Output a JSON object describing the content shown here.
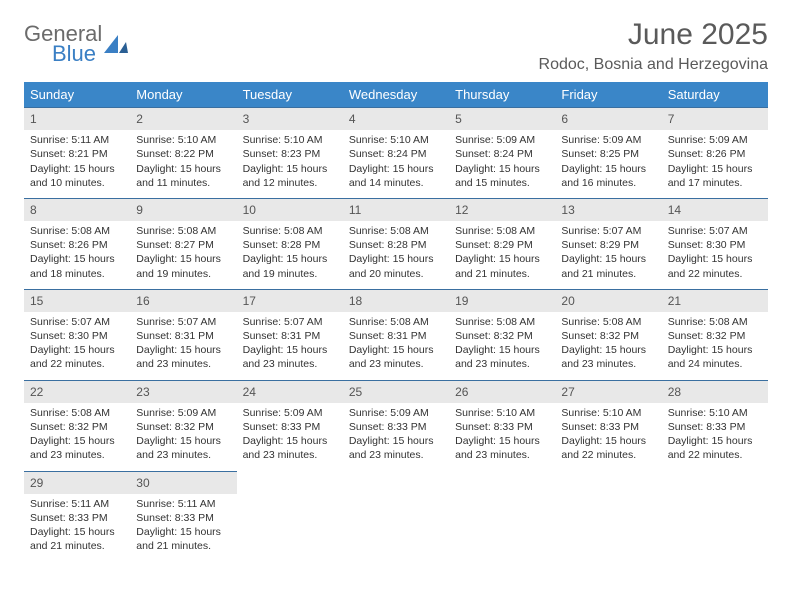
{
  "logo": {
    "word1": "General",
    "word2": "Blue"
  },
  "title": "June 2025",
  "location": "Rodoc, Bosnia and Herzegovina",
  "colors": {
    "header_bg": "#3a86c8",
    "header_text": "#ffffff",
    "daynum_bg": "#e8e8e8",
    "daynum_border": "#3a6fa0",
    "body_text": "#333333",
    "title_text": "#5a5a5a",
    "logo_gray": "#6b6b6b",
    "logo_blue": "#3a7fc4",
    "page_bg": "#ffffff"
  },
  "typography": {
    "title_fontsize": 30,
    "location_fontsize": 16,
    "dayheader_fontsize": 13,
    "cell_fontsize": 10.5
  },
  "layout": {
    "columns": 7,
    "first_weekday": "Sunday"
  },
  "weekdays": [
    "Sunday",
    "Monday",
    "Tuesday",
    "Wednesday",
    "Thursday",
    "Friday",
    "Saturday"
  ],
  "days": [
    {
      "n": 1,
      "sunrise": "5:11 AM",
      "sunset": "8:21 PM",
      "daylight": "15 hours and 10 minutes."
    },
    {
      "n": 2,
      "sunrise": "5:10 AM",
      "sunset": "8:22 PM",
      "daylight": "15 hours and 11 minutes."
    },
    {
      "n": 3,
      "sunrise": "5:10 AM",
      "sunset": "8:23 PM",
      "daylight": "15 hours and 12 minutes."
    },
    {
      "n": 4,
      "sunrise": "5:10 AM",
      "sunset": "8:24 PM",
      "daylight": "15 hours and 14 minutes."
    },
    {
      "n": 5,
      "sunrise": "5:09 AM",
      "sunset": "8:24 PM",
      "daylight": "15 hours and 15 minutes."
    },
    {
      "n": 6,
      "sunrise": "5:09 AM",
      "sunset": "8:25 PM",
      "daylight": "15 hours and 16 minutes."
    },
    {
      "n": 7,
      "sunrise": "5:09 AM",
      "sunset": "8:26 PM",
      "daylight": "15 hours and 17 minutes."
    },
    {
      "n": 8,
      "sunrise": "5:08 AM",
      "sunset": "8:26 PM",
      "daylight": "15 hours and 18 minutes."
    },
    {
      "n": 9,
      "sunrise": "5:08 AM",
      "sunset": "8:27 PM",
      "daylight": "15 hours and 19 minutes."
    },
    {
      "n": 10,
      "sunrise": "5:08 AM",
      "sunset": "8:28 PM",
      "daylight": "15 hours and 19 minutes."
    },
    {
      "n": 11,
      "sunrise": "5:08 AM",
      "sunset": "8:28 PM",
      "daylight": "15 hours and 20 minutes."
    },
    {
      "n": 12,
      "sunrise": "5:08 AM",
      "sunset": "8:29 PM",
      "daylight": "15 hours and 21 minutes."
    },
    {
      "n": 13,
      "sunrise": "5:07 AM",
      "sunset": "8:29 PM",
      "daylight": "15 hours and 21 minutes."
    },
    {
      "n": 14,
      "sunrise": "5:07 AM",
      "sunset": "8:30 PM",
      "daylight": "15 hours and 22 minutes."
    },
    {
      "n": 15,
      "sunrise": "5:07 AM",
      "sunset": "8:30 PM",
      "daylight": "15 hours and 22 minutes."
    },
    {
      "n": 16,
      "sunrise": "5:07 AM",
      "sunset": "8:31 PM",
      "daylight": "15 hours and 23 minutes."
    },
    {
      "n": 17,
      "sunrise": "5:07 AM",
      "sunset": "8:31 PM",
      "daylight": "15 hours and 23 minutes."
    },
    {
      "n": 18,
      "sunrise": "5:08 AM",
      "sunset": "8:31 PM",
      "daylight": "15 hours and 23 minutes."
    },
    {
      "n": 19,
      "sunrise": "5:08 AM",
      "sunset": "8:32 PM",
      "daylight": "15 hours and 23 minutes."
    },
    {
      "n": 20,
      "sunrise": "5:08 AM",
      "sunset": "8:32 PM",
      "daylight": "15 hours and 23 minutes."
    },
    {
      "n": 21,
      "sunrise": "5:08 AM",
      "sunset": "8:32 PM",
      "daylight": "15 hours and 24 minutes."
    },
    {
      "n": 22,
      "sunrise": "5:08 AM",
      "sunset": "8:32 PM",
      "daylight": "15 hours and 23 minutes."
    },
    {
      "n": 23,
      "sunrise": "5:09 AM",
      "sunset": "8:32 PM",
      "daylight": "15 hours and 23 minutes."
    },
    {
      "n": 24,
      "sunrise": "5:09 AM",
      "sunset": "8:33 PM",
      "daylight": "15 hours and 23 minutes."
    },
    {
      "n": 25,
      "sunrise": "5:09 AM",
      "sunset": "8:33 PM",
      "daylight": "15 hours and 23 minutes."
    },
    {
      "n": 26,
      "sunrise": "5:10 AM",
      "sunset": "8:33 PM",
      "daylight": "15 hours and 23 minutes."
    },
    {
      "n": 27,
      "sunrise": "5:10 AM",
      "sunset": "8:33 PM",
      "daylight": "15 hours and 22 minutes."
    },
    {
      "n": 28,
      "sunrise": "5:10 AM",
      "sunset": "8:33 PM",
      "daylight": "15 hours and 22 minutes."
    },
    {
      "n": 29,
      "sunrise": "5:11 AM",
      "sunset": "8:33 PM",
      "daylight": "15 hours and 21 minutes."
    },
    {
      "n": 30,
      "sunrise": "5:11 AM",
      "sunset": "8:33 PM",
      "daylight": "15 hours and 21 minutes."
    }
  ],
  "labels": {
    "sunrise": "Sunrise:",
    "sunset": "Sunset:",
    "daylight": "Daylight:"
  }
}
